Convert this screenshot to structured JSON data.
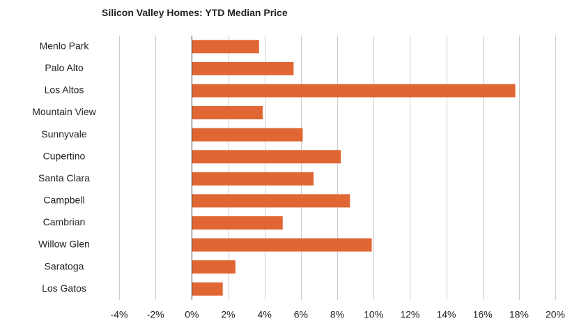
{
  "chart_data": {
    "type": "bar",
    "orientation": "horizontal",
    "title": "Silicon Valley Homes: YTD Median Price",
    "xlabel": "",
    "ylabel": "",
    "categories": [
      "Menlo Park",
      "Palo Alto",
      "Los Altos",
      "Mountain View",
      "Sunnyvale",
      "Cupertino",
      "Santa Clara",
      "Campbell",
      "Cambrian",
      "Willow Glen",
      "Saratoga",
      "Los Gatos"
    ],
    "values": [
      3.7,
      5.6,
      17.8,
      3.9,
      6.1,
      8.2,
      6.7,
      8.7,
      5.0,
      9.9,
      2.4,
      1.7
    ],
    "xlim": [
      -4,
      20
    ],
    "xticks": [
      -4,
      -2,
      0,
      2,
      4,
      6,
      8,
      10,
      12,
      14,
      16,
      18,
      20
    ],
    "xtick_labels": [
      "-4%",
      "-2%",
      "0%",
      "2%",
      "4%",
      "6%",
      "8%",
      "10%",
      "12%",
      "14%",
      "16%",
      "18%",
      "20%"
    ],
    "grid": "vertical",
    "legend": "none",
    "bar_color": "#e06633",
    "grid_color": "#cccccc",
    "axis_color": "#333333"
  }
}
